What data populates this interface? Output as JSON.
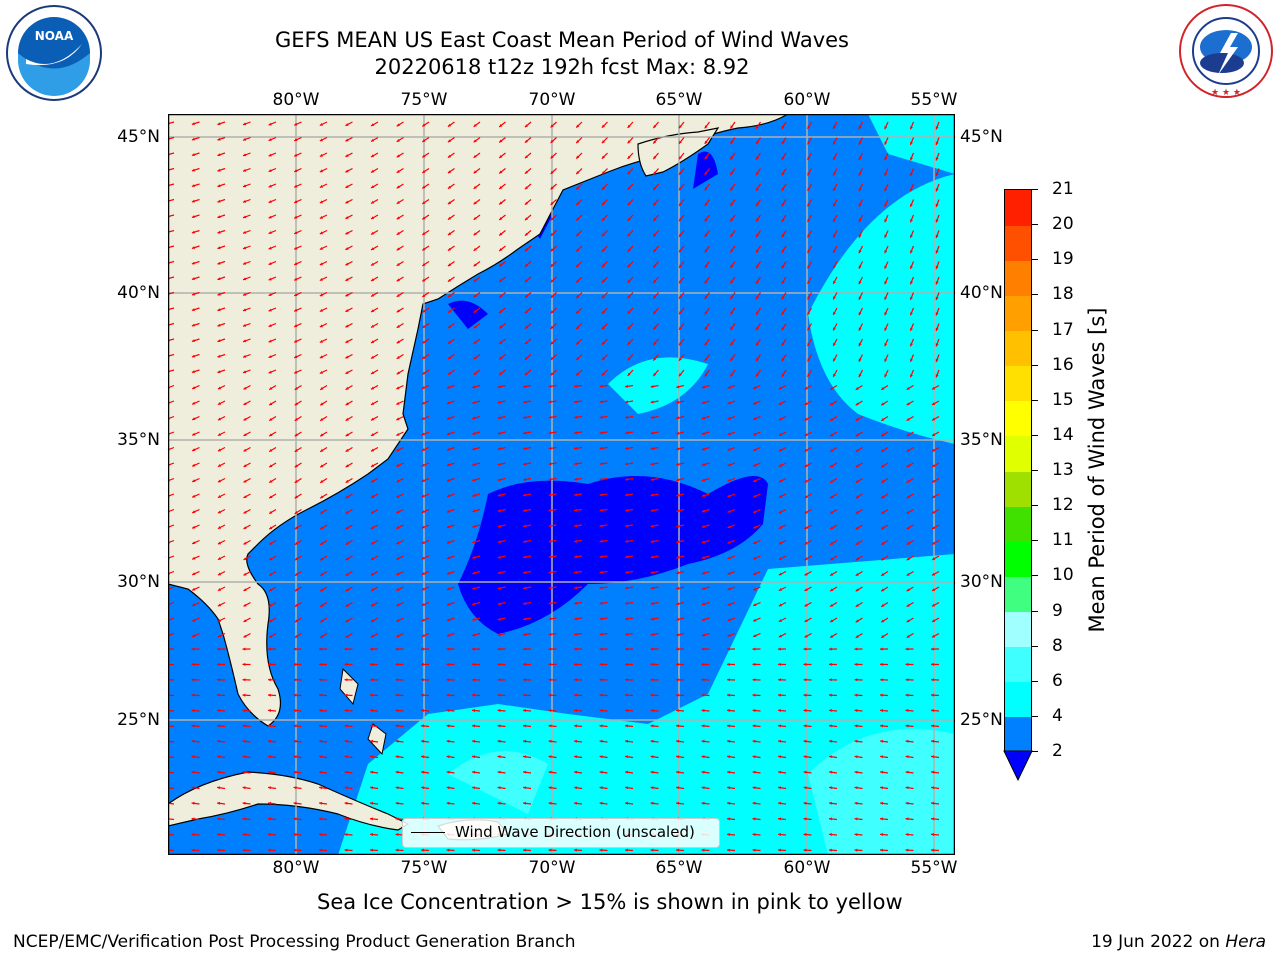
{
  "header": {
    "title_line1": "GEFS MEAN US East Coast Mean Period of Wind Waves",
    "title_line2": "20220618 t12z 192h fcst   Max: 8.92"
  },
  "logos": {
    "noaa": {
      "text": "NOAA",
      "ring_text": "NATIONAL OCEANIC AND ATMOSPHERIC ADMINISTRATION · U.S. DEPARTMENT OF COMMERCE"
    },
    "nws": {
      "ring_text": "NATIONAL WEATHER SERVICE"
    }
  },
  "map": {
    "lon_labels": [
      "80°W",
      "75°W",
      "70°W",
      "65°W",
      "60°W",
      "55°W"
    ],
    "lat_labels": [
      "45°N",
      "40°N",
      "35°N",
      "30°N",
      "25°N"
    ],
    "legend_label": "Wind Wave Direction (unscaled)",
    "colors": {
      "land": "#efeedd",
      "arrow": "#ff0000",
      "grid": "#b0b0b0"
    }
  },
  "colorbar": {
    "label": "Mean Period of Wind Waves [s]",
    "ticks": [
      "2",
      "4",
      "6",
      "8",
      "9",
      "10",
      "11",
      "12",
      "13",
      "14",
      "15",
      "16",
      "17",
      "18",
      "19",
      "20",
      "21"
    ],
    "colors": [
      "#0080ff",
      "#00ffff",
      "#40ffff",
      "#a0ffff",
      "#40ff80",
      "#00ff00",
      "#40e000",
      "#a0e000",
      "#e0ff00",
      "#ffff00",
      "#ffe000",
      "#ffc000",
      "#ffa000",
      "#ff8000",
      "#ff5000",
      "#ff2000",
      "#ff0000"
    ],
    "under_color": "#0000ff"
  },
  "note": "Sea Ice Concentration > 15% is shown in pink to yellow",
  "footer": {
    "left": "NCEP/EMC/Verification Post Processing Product Generation Branch",
    "right_date": "19 Jun 2022 on ",
    "right_host": "Hera"
  }
}
